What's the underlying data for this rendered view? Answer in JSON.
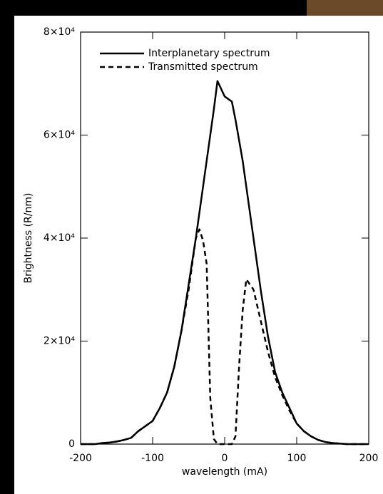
{
  "chart_data": {
    "type": "line",
    "x": [
      -200,
      -190,
      -180,
      -170,
      -160,
      -150,
      -140,
      -130,
      -120,
      -110,
      -100,
      -90,
      -80,
      -70,
      -60,
      -50,
      -40,
      -35,
      -30,
      -25,
      -20,
      -15,
      -10,
      0,
      10,
      15,
      20,
      25,
      30,
      35,
      40,
      50,
      60,
      70,
      80,
      90,
      100,
      110,
      120,
      130,
      140,
      150,
      160,
      170,
      180,
      190,
      200
    ],
    "series": [
      {
        "name": "Interplanetary spectrum",
        "color": "#000000",
        "style": "solid",
        "values": [
          0,
          0,
          0,
          200,
          300,
          500,
          800,
          1200,
          2500,
          3500,
          4500,
          7000,
          10000,
          15000,
          22000,
          31000,
          40000,
          45000,
          50000,
          55000,
          60000,
          65000,
          70500,
          67500,
          66500,
          63000,
          59000,
          55000,
          50000,
          45000,
          40000,
          30000,
          21000,
          14000,
          10000,
          7000,
          4000,
          2500,
          1500,
          800,
          400,
          200,
          100,
          0,
          0,
          0,
          0
        ]
      },
      {
        "name": "Transmitted spectrum",
        "color": "#000000",
        "style": "dashed",
        "values": [
          0,
          0,
          0,
          200,
          300,
          500,
          800,
          1200,
          2500,
          3500,
          4500,
          7000,
          10000,
          15000,
          22000,
          30000,
          40000,
          41700,
          39500,
          35000,
          9000,
          1000,
          0,
          0,
          0,
          1500,
          15000,
          26000,
          32000,
          31000,
          30000,
          24000,
          18000,
          13000,
          9500,
          6500,
          4000,
          2500,
          1500,
          800,
          400,
          200,
          100,
          0,
          0,
          0,
          0
        ]
      }
    ],
    "x_label": "wavelength (mA)",
    "y_label": "Brightness (R/nm)",
    "xlim": [
      -200,
      200
    ],
    "xticks": [
      -200,
      -100,
      0,
      100,
      200
    ],
    "ylim": [
      0,
      80000
    ],
    "yticks": [
      0,
      {
        "value": 20000,
        "label": "2×10⁴"
      },
      {
        "value": 40000,
        "label": "4×10⁴"
      },
      {
        "value": 60000,
        "label": "6×10⁴"
      },
      {
        "value": 80000,
        "label": "8×10⁴"
      }
    ],
    "legend": "top-left"
  }
}
